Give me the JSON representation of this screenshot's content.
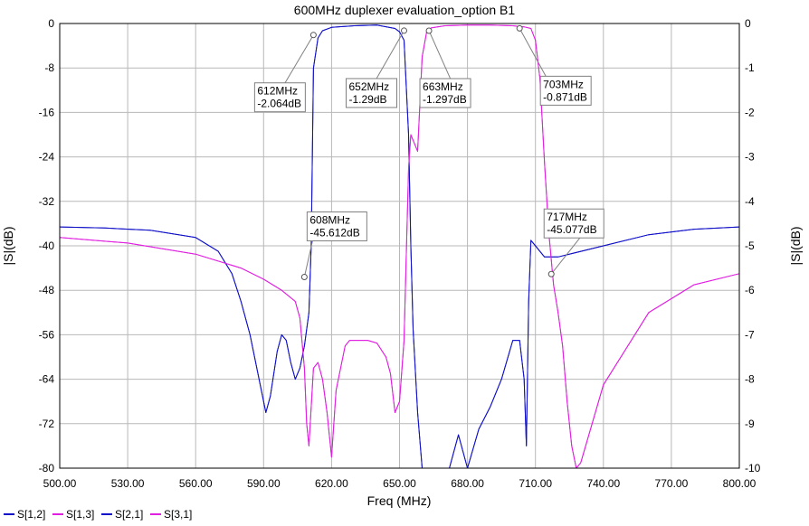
{
  "chart_data": {
    "type": "line",
    "title": "600MHz duplexer evaluation_option B1",
    "xlabel": "Freq (MHz)",
    "ylabel_left": "|S|(dB)",
    "ylabel_right": "|S|(dB)",
    "xlim": [
      500,
      800
    ],
    "ylim_left": [
      -80,
      0
    ],
    "ylim_right": [
      -10,
      0
    ],
    "xticks": [
      "500.00",
      "530.00",
      "560.00",
      "590.00",
      "620.00",
      "650.00",
      "680.00",
      "710.00",
      "740.00",
      "770.00",
      "800.00"
    ],
    "yticks_left": [
      "0",
      "-8",
      "-16",
      "-24",
      "-32",
      "-40",
      "-48",
      "-56",
      "-64",
      "-72",
      "-80"
    ],
    "yticks_right": [
      "0",
      "-1",
      "-2",
      "-3",
      "-4",
      "-5",
      "-6",
      "-7",
      "-8",
      "-9",
      "-10"
    ],
    "grid": true,
    "legend_position": "bottom-left",
    "series": [
      {
        "name": "S[1,2]",
        "color": "#1010c8",
        "axis": "left",
        "x": [
          500,
          520,
          540,
          560,
          570,
          576,
          580,
          584,
          588,
          591,
          593,
          596,
          598,
          600,
          602,
          604,
          606,
          608,
          610,
          611,
          612,
          614,
          616,
          620,
          630,
          640,
          648,
          650,
          652,
          654,
          655,
          656,
          658,
          660,
          664,
          668,
          672,
          676,
          680,
          685,
          690,
          695,
          700,
          703,
          705,
          706,
          707,
          708,
          710,
          714,
          720,
          740,
          760,
          780,
          800
        ],
        "y": [
          -36.6,
          -36.8,
          -37.2,
          -38.5,
          -41,
          -45,
          -50,
          -56,
          -64,
          -70,
          -67,
          -59,
          -56,
          -57,
          -61,
          -64,
          -62,
          -58,
          -52,
          -40,
          -8,
          -2.6,
          -1.3,
          -0.7,
          -0.4,
          -0.3,
          -0.9,
          -1.5,
          -3,
          -20,
          -40,
          -55,
          -70,
          -80,
          -80,
          -80,
          -80,
          -74,
          -80,
          -73,
          -69,
          -64,
          -57,
          -57,
          -64,
          -76,
          -50,
          -39,
          -40,
          -42,
          -42,
          -40,
          -38,
          -37,
          -36.6
        ]
      },
      {
        "name": "S[1,3]",
        "color": "#e020e0",
        "axis": "left",
        "x": [
          500,
          530,
          560,
          580,
          590,
          598,
          604,
          606,
          608,
          609,
          610,
          612,
          614,
          616,
          618,
          620,
          622,
          624,
          626,
          628,
          632,
          636,
          640,
          644,
          646,
          648,
          650,
          652,
          654,
          655,
          656,
          658,
          660,
          662,
          664,
          670,
          680,
          690,
          700,
          705,
          708,
          710,
          712,
          714,
          716,
          718,
          720,
          722,
          724,
          726,
          728,
          730,
          740,
          760,
          780,
          800
        ],
        "y": [
          -38.5,
          -39.5,
          -41.5,
          -44,
          -46,
          -48,
          -50,
          -53,
          -62,
          -72,
          -76,
          -62,
          -61,
          -64,
          -70,
          -78,
          -66,
          -62,
          -58,
          -57,
          -57,
          -57,
          -57.5,
          -60,
          -63,
          -70,
          -68,
          -57,
          -26,
          -20,
          -21,
          -23,
          -6,
          -1.5,
          -0.8,
          -0.4,
          -0.3,
          -0.3,
          -0.4,
          -0.6,
          -0.9,
          -3,
          -10,
          -25,
          -38,
          -47,
          -52,
          -58,
          -68,
          -76,
          -80,
          -79,
          -65,
          -52,
          -47,
          -45
        ]
      },
      {
        "name": "S[2,1]",
        "color": "#1010c8",
        "axis": "right",
        "x": [
          500,
          520,
          540,
          560,
          570,
          576,
          580,
          584,
          588,
          591,
          593,
          596,
          598,
          600,
          602,
          604,
          606,
          608,
          610,
          611,
          612,
          614,
          616,
          620,
          630,
          640,
          648,
          650,
          652,
          654,
          655,
          656,
          658,
          660,
          664,
          668,
          672,
          676,
          680,
          685,
          690,
          695,
          700,
          703,
          705,
          706,
          707,
          708,
          710,
          714,
          720,
          740,
          760,
          780,
          800
        ],
        "y": [
          -4.575,
          -4.6,
          -4.65,
          -4.8125,
          -5.125,
          -5.625,
          -6.25,
          -7,
          -8,
          -8.75,
          -8.375,
          -7.375,
          -7,
          -7.125,
          -7.625,
          -8,
          -7.75,
          -7.25,
          -6.5,
          -5,
          -1,
          -0.325,
          -0.1625,
          -0.0875,
          -0.05,
          -0.0375,
          -0.1125,
          -0.1875,
          -0.375,
          -2.5,
          -5,
          -6.875,
          -8.75,
          -10,
          -10,
          -10,
          -10,
          -9.25,
          -10,
          -9.125,
          -8.625,
          -8,
          -7.125,
          -7.125,
          -8,
          -9.5,
          -6.25,
          -4.875,
          -5,
          -5.25,
          -5.25,
          -5,
          -4.75,
          -4.625,
          -4.575
        ]
      },
      {
        "name": "S[3,1]",
        "color": "#e020e0",
        "axis": "right",
        "x": [
          500,
          530,
          560,
          580,
          590,
          598,
          604,
          606,
          608,
          609,
          610,
          612,
          614,
          616,
          618,
          620,
          622,
          624,
          626,
          628,
          632,
          636,
          640,
          644,
          646,
          648,
          650,
          652,
          654,
          655,
          656,
          658,
          660,
          662,
          664,
          670,
          680,
          690,
          700,
          705,
          708,
          710,
          712,
          714,
          716,
          718,
          720,
          722,
          724,
          726,
          728,
          730,
          740,
          760,
          780,
          800
        ],
        "y": [
          -4.8125,
          -4.9375,
          -5.1875,
          -5.5,
          -5.75,
          -6,
          -6.25,
          -6.625,
          -7.75,
          -9,
          -9.5,
          -7.75,
          -7.625,
          -8,
          -8.75,
          -9.75,
          -8.25,
          -7.75,
          -7.25,
          -7.125,
          -7.125,
          -7.125,
          -7.1875,
          -7.5,
          -7.875,
          -8.75,
          -8.5,
          -7.125,
          -3.25,
          -2.5,
          -2.625,
          -2.875,
          -0.75,
          -0.1875,
          -0.1,
          -0.05,
          -0.0375,
          -0.0375,
          -0.05,
          -0.075,
          -0.1125,
          -0.375,
          -1.25,
          -3.125,
          -4.75,
          -5.875,
          -6.5,
          -7.25,
          -8.5,
          -9.5,
          -10,
          -9.875,
          -8.125,
          -6.5,
          -5.875,
          -5.625
        ]
      }
    ],
    "markers": [
      {
        "x": 612,
        "y": -2.064,
        "label_freq": "612MHz",
        "label_val": "-2.064dB"
      },
      {
        "x": 652,
        "y": -1.29,
        "label_freq": "652MHz",
        "label_val": "-1.29dB"
      },
      {
        "x": 663,
        "y": -1.297,
        "label_freq": "663MHz",
        "label_val": "-1.297dB"
      },
      {
        "x": 703,
        "y": -0.871,
        "label_freq": "703MHz",
        "label_val": "-0.871dB"
      },
      {
        "x": 608,
        "y": -45.612,
        "label_freq": "608MHz",
        "label_val": "-45.612dB"
      },
      {
        "x": 717,
        "y": -45.077,
        "label_freq": "717MHz",
        "label_val": "-45.077dB"
      }
    ]
  }
}
